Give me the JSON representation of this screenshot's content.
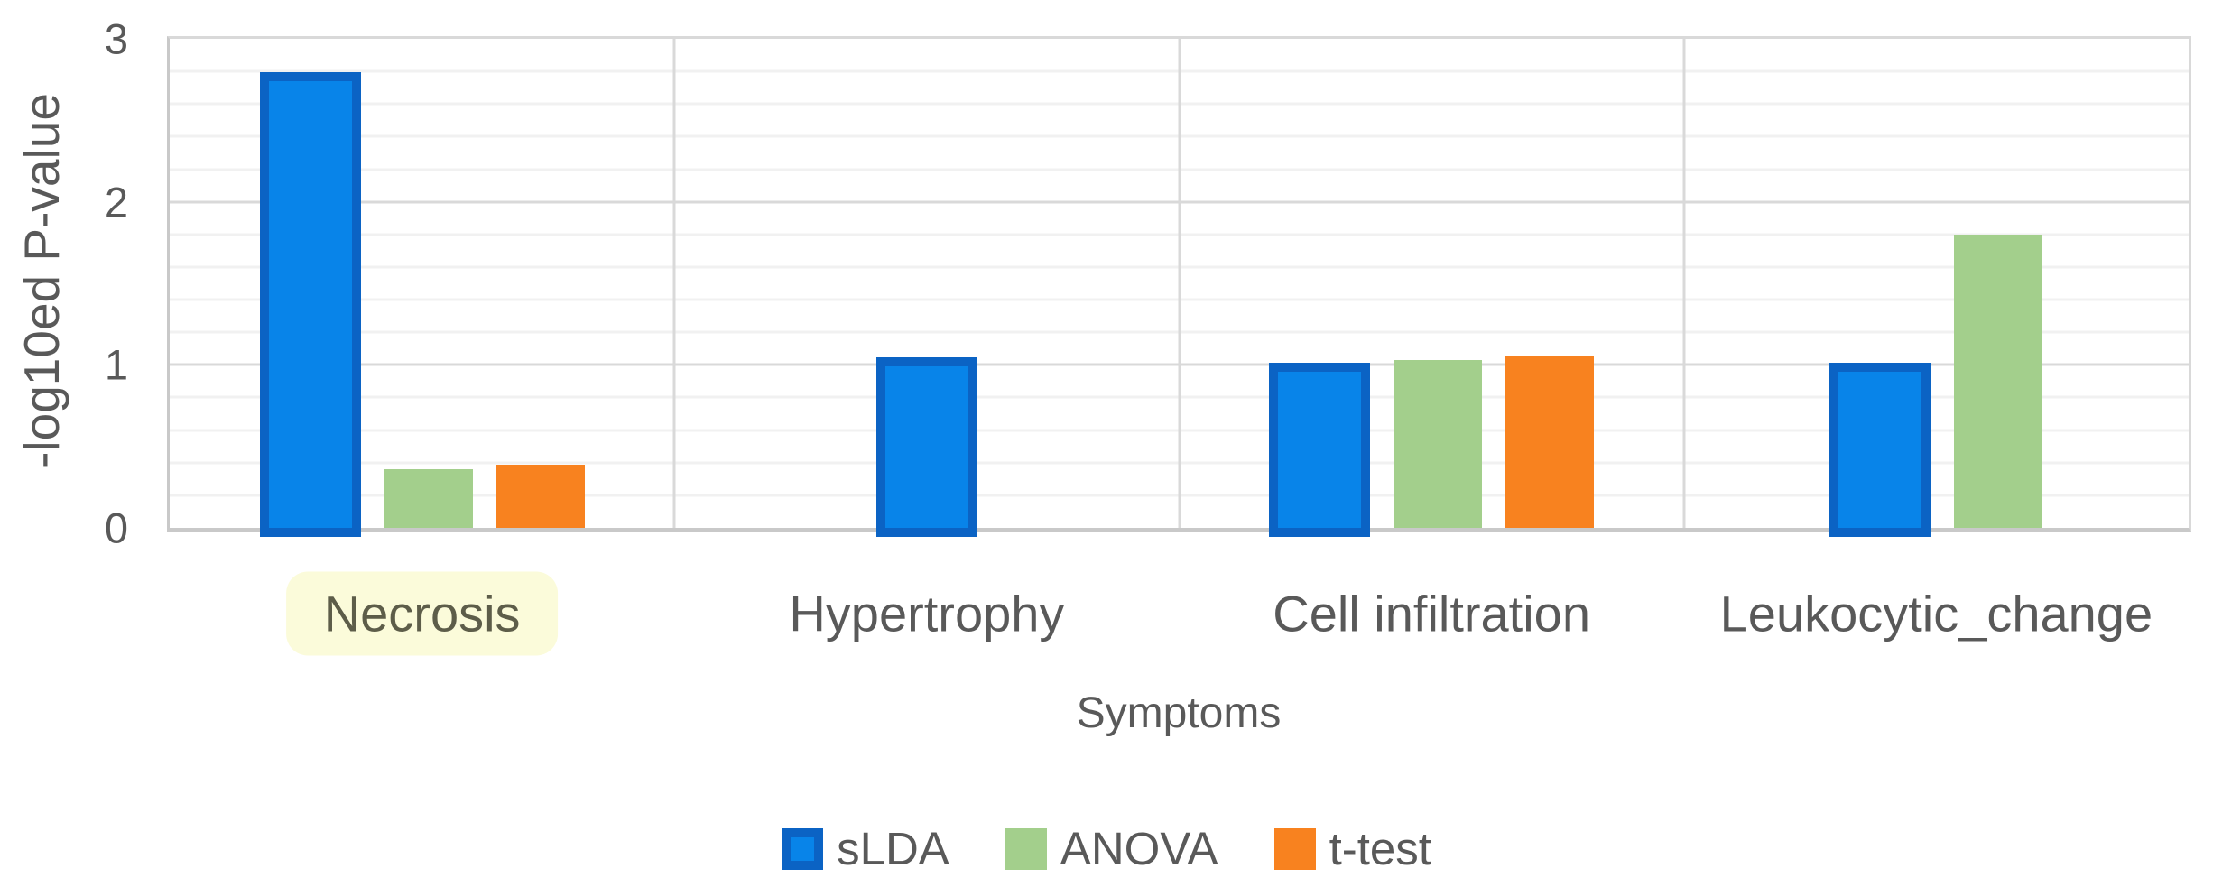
{
  "chart_data": {
    "type": "bar",
    "title": "",
    "ylabel": "-log10ed P-value",
    "xlabel": "Symptoms",
    "categories": [
      "Necrosis",
      "Hypertrophy",
      "Cell infiltration",
      "Leukocytic_change"
    ],
    "series": [
      {
        "name": "sLDA",
        "fill": "#0884e9",
        "stroke": "#0b63c4",
        "values": [
          2.85,
          1.1,
          1.07,
          1.07
        ]
      },
      {
        "name": "ANOVA",
        "fill": "#a3cf8c",
        "stroke": null,
        "values": [
          0.36,
          0,
          1.03,
          1.8
        ]
      },
      {
        "name": "t-test",
        "fill": "#f8821f",
        "stroke": null,
        "values": [
          0.39,
          0,
          1.06,
          0
        ]
      }
    ],
    "ylim": [
      0,
      3
    ],
    "yticks": [
      0,
      1,
      2,
      3
    ],
    "minor_gridline_step": 0.2,
    "grid": true,
    "legend_position": "bottom",
    "highlighted_category": {
      "label": "Necrosis",
      "background": "#fbfbda",
      "text_color": "#5d5d49"
    }
  },
  "style": {
    "background": "#ffffff",
    "text_color": "#595959",
    "major_gridline": "#d9d9d9",
    "minor_gridline": "#f1f1f1",
    "axis_line": "#c9c9c9"
  }
}
